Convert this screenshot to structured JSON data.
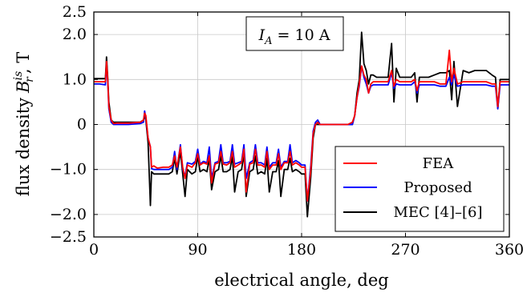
{
  "chart_data": {
    "type": "line",
    "xlabel": "electrical angle, deg",
    "ylabel": "flux density B_r^is, T",
    "ylabel_main": "flux density",
    "ylabel_symbol": "B",
    "ylabel_sub": "r",
    "ylabel_sup": "is",
    "ylabel_unit": ", T",
    "annotation": "I_A = 10 A",
    "annotation_var": "I",
    "annotation_sub": "A",
    "annotation_rest": " = 10 A",
    "xlim": [
      0,
      360
    ],
    "ylim": [
      -2.5,
      2.5
    ],
    "x_ticks": [
      0,
      90,
      180,
      270,
      360
    ],
    "x_tick_labels": [
      "0",
      "90",
      "180",
      "270",
      "360"
    ],
    "y_ticks": [
      2.5,
      2.0,
      1.0,
      0,
      -1.0,
      -2.0,
      -2.5
    ],
    "y_tick_labels": [
      "2.5",
      "2.0",
      "1.0",
      "0",
      "−1.0",
      "−2.0",
      "−2.5"
    ],
    "grid": true,
    "legend_position": "bottom-right",
    "series": [
      {
        "name": "FEA",
        "color": "#ff0000",
        "x": [
          0,
          5,
          10,
          11,
          12,
          13,
          15,
          17,
          20,
          30,
          40,
          43,
          44,
          45,
          47,
          49,
          50,
          52,
          55,
          60,
          65,
          68,
          70,
          72,
          75,
          77,
          79,
          81,
          85,
          88,
          90,
          92,
          95,
          98,
          100,
          102,
          105,
          108,
          110,
          112,
          115,
          118,
          120,
          122,
          125,
          128,
          130,
          132,
          135,
          138,
          140,
          142,
          145,
          148,
          150,
          152,
          155,
          158,
          160,
          162,
          165,
          168,
          170,
          172,
          175,
          178,
          180,
          183,
          185,
          188,
          190,
          192,
          194,
          195,
          196,
          198,
          200,
          205,
          210,
          215,
          220,
          224,
          226,
          228,
          230,
          232,
          234,
          236,
          238,
          240,
          242,
          245,
          250,
          255,
          258,
          260,
          262,
          265,
          270,
          275,
          278,
          280,
          282,
          285,
          290,
          295,
          300,
          305,
          308,
          310,
          312,
          315,
          320,
          325,
          330,
          335,
          340,
          345,
          348,
          350,
          352,
          355,
          360
        ],
        "y": [
          0.95,
          0.95,
          0.95,
          1.4,
          1.0,
          0.4,
          0.1,
          0.02,
          0.03,
          0.03,
          0.05,
          0.1,
          0.25,
          0.2,
          -0.3,
          -0.5,
          -0.95,
          -0.92,
          -0.97,
          -0.95,
          -0.95,
          -0.9,
          -0.7,
          -0.95,
          -0.5,
          -0.95,
          -1.2,
          -0.9,
          -0.95,
          -0.85,
          -0.65,
          -0.9,
          -0.85,
          -0.88,
          -0.7,
          -1.3,
          -0.88,
          -0.85,
          -0.6,
          -0.88,
          -0.9,
          -0.85,
          -0.6,
          -0.95,
          -0.9,
          -0.85,
          -0.55,
          -1.5,
          -0.88,
          -0.85,
          -0.55,
          -0.9,
          -0.9,
          -0.95,
          -0.6,
          -1.0,
          -0.9,
          -0.9,
          -0.65,
          -1.0,
          -0.85,
          -0.85,
          -0.6,
          -0.9,
          -0.85,
          -0.9,
          -0.95,
          -0.95,
          -1.7,
          -1.0,
          -0.2,
          0.0,
          0.05,
          0.02,
          0.0,
          0.0,
          0.0,
          0.0,
          0.0,
          0.0,
          0.0,
          0.05,
          0.2,
          0.6,
          0.9,
          1.3,
          1.1,
          1.0,
          0.7,
          0.9,
          0.95,
          0.95,
          0.95,
          0.95,
          1.2,
          0.85,
          1.0,
          0.95,
          0.95,
          0.95,
          1.0,
          0.75,
          0.95,
          0.95,
          0.95,
          0.95,
          0.9,
          0.9,
          1.65,
          0.95,
          1.25,
          0.9,
          0.95,
          0.95,
          0.95,
          0.95,
          0.95,
          0.9,
          0.9,
          0.4,
          0.95,
          0.95,
          0.95
        ]
      },
      {
        "name": "Proposed",
        "color": "#0000ff",
        "x": [
          0,
          5,
          10,
          11,
          12,
          13,
          15,
          17,
          20,
          30,
          40,
          43,
          44,
          45,
          47,
          49,
          50,
          52,
          55,
          60,
          65,
          68,
          70,
          72,
          75,
          77,
          79,
          81,
          85,
          88,
          90,
          92,
          95,
          98,
          100,
          102,
          105,
          108,
          110,
          112,
          115,
          118,
          120,
          122,
          125,
          128,
          130,
          132,
          135,
          138,
          140,
          142,
          145,
          148,
          150,
          152,
          155,
          158,
          160,
          162,
          165,
          168,
          170,
          172,
          175,
          178,
          180,
          183,
          185,
          188,
          190,
          192,
          194,
          195,
          196,
          198,
          200,
          205,
          210,
          215,
          220,
          224,
          226,
          228,
          230,
          232,
          234,
          236,
          238,
          240,
          242,
          245,
          250,
          255,
          258,
          260,
          262,
          265,
          270,
          275,
          278,
          280,
          282,
          285,
          290,
          295,
          300,
          305,
          308,
          310,
          312,
          315,
          320,
          325,
          330,
          335,
          340,
          345,
          348,
          350,
          352,
          355,
          360
        ],
        "y": [
          0.9,
          0.9,
          0.88,
          1.35,
          0.95,
          0.35,
          0.05,
          0.0,
          0.0,
          0.0,
          0.02,
          0.05,
          0.3,
          0.15,
          -0.3,
          -0.5,
          -0.98,
          -1.0,
          -1.0,
          -1.0,
          -1.0,
          -0.95,
          -0.6,
          -1.0,
          -0.45,
          -1.0,
          -1.15,
          -0.85,
          -0.88,
          -0.82,
          -0.55,
          -0.88,
          -0.82,
          -0.85,
          -0.5,
          -1.2,
          -0.85,
          -0.82,
          -0.45,
          -0.85,
          -0.85,
          -0.82,
          -0.45,
          -0.88,
          -0.85,
          -0.82,
          -0.45,
          -1.2,
          -0.85,
          -0.8,
          -0.45,
          -0.85,
          -0.85,
          -0.9,
          -0.5,
          -0.95,
          -0.85,
          -0.85,
          -0.55,
          -0.95,
          -0.82,
          -0.82,
          -0.45,
          -0.85,
          -0.8,
          -0.85,
          -0.9,
          -0.9,
          -1.7,
          -0.9,
          -0.15,
          0.05,
          0.1,
          0.05,
          0.0,
          0.0,
          0.0,
          0.0,
          0.0,
          0.0,
          0.0,
          0.0,
          0.2,
          0.6,
          0.85,
          1.3,
          1.05,
          0.9,
          0.7,
          0.85,
          0.88,
          0.88,
          0.88,
          0.88,
          1.15,
          0.8,
          0.9,
          0.88,
          0.88,
          0.88,
          0.95,
          0.7,
          0.88,
          0.88,
          0.88,
          0.88,
          0.85,
          0.85,
          1.05,
          0.88,
          1.1,
          0.85,
          0.88,
          0.88,
          0.88,
          0.88,
          0.88,
          0.85,
          0.85,
          0.35,
          0.88,
          0.88,
          0.88
        ]
      },
      {
        "name": "MEC [4]–[6]",
        "color": "#000000",
        "x": [
          0,
          5,
          10,
          11,
          12,
          13,
          15,
          17,
          20,
          30,
          40,
          43,
          44,
          45,
          47,
          49,
          50,
          52,
          55,
          60,
          65,
          68,
          70,
          72,
          75,
          77,
          79,
          81,
          85,
          88,
          90,
          92,
          95,
          98,
          100,
          102,
          105,
          108,
          110,
          112,
          115,
          118,
          120,
          122,
          125,
          128,
          130,
          132,
          135,
          138,
          140,
          142,
          145,
          148,
          150,
          152,
          155,
          158,
          160,
          162,
          165,
          168,
          170,
          172,
          175,
          178,
          180,
          183,
          185,
          188,
          190,
          192,
          194,
          195,
          196,
          198,
          200,
          205,
          210,
          215,
          220,
          224,
          226,
          228,
          230,
          232,
          234,
          236,
          238,
          240,
          242,
          245,
          250,
          255,
          258,
          260,
          262,
          265,
          270,
          275,
          278,
          280,
          282,
          285,
          290,
          295,
          300,
          305,
          308,
          310,
          312,
          315,
          320,
          325,
          330,
          335,
          340,
          345,
          348,
          350,
          352,
          355,
          360
        ],
        "y": [
          1.02,
          1.02,
          1.02,
          1.5,
          1.05,
          0.5,
          0.1,
          0.05,
          0.05,
          0.05,
          0.05,
          0.1,
          0.2,
          0.1,
          -0.4,
          -1.8,
          -1.05,
          -1.1,
          -1.1,
          -1.1,
          -1.1,
          -1.05,
          -0.75,
          -1.1,
          -0.6,
          -1.1,
          -1.6,
          -1.0,
          -1.1,
          -1.05,
          -0.7,
          -1.05,
          -1.0,
          -1.05,
          -0.75,
          -1.45,
          -1.05,
          -1.0,
          -0.7,
          -1.05,
          -1.05,
          -1.0,
          -0.7,
          -1.5,
          -1.05,
          -1.0,
          -0.65,
          -1.6,
          -1.05,
          -1.0,
          -0.7,
          -1.1,
          -1.05,
          -1.1,
          -0.75,
          -1.5,
          -1.05,
          -1.05,
          -0.8,
          -1.6,
          -1.0,
          -1.0,
          -0.75,
          -1.05,
          -1.0,
          -1.05,
          -1.1,
          -1.1,
          -2.05,
          -1.15,
          -0.3,
          0.0,
          0.0,
          0.0,
          0.0,
          0.0,
          0.0,
          0.0,
          0.0,
          0.0,
          0.0,
          0.0,
          0.2,
          0.7,
          1.0,
          2.05,
          1.35,
          1.2,
          0.9,
          1.1,
          1.1,
          1.05,
          1.05,
          1.05,
          1.8,
          0.5,
          1.25,
          1.05,
          1.05,
          1.05,
          1.15,
          0.5,
          1.05,
          1.05,
          1.05,
          1.1,
          1.15,
          1.15,
          1.2,
          0.55,
          1.4,
          0.4,
          1.2,
          1.15,
          1.2,
          1.2,
          1.2,
          1.1,
          1.05,
          0.35,
          1.0,
          1.0,
          1.0
        ]
      }
    ]
  }
}
